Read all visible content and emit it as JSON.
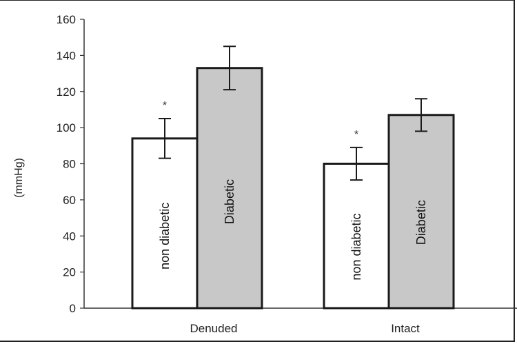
{
  "chart_data": {
    "type": "bar",
    "categories": [
      "Denuded",
      "Intact"
    ],
    "series": [
      {
        "name": "non diabetic",
        "values": [
          94,
          80
        ],
        "errors": [
          11,
          9
        ],
        "color": "#ffffff",
        "significance": [
          "*",
          "*"
        ]
      },
      {
        "name": "Diabetic",
        "values": [
          133,
          107
        ],
        "errors": [
          12,
          9
        ],
        "color": "#c8c8c8",
        "significance": [
          "",
          ""
        ]
      }
    ],
    "ylabel": "(mmHg)",
    "ylim": [
      0,
      160
    ],
    "yticks": [
      "0",
      "20",
      "40",
      "60",
      "80",
      "100",
      "120",
      "140",
      "160"
    ],
    "grid": false,
    "legend": "none"
  }
}
